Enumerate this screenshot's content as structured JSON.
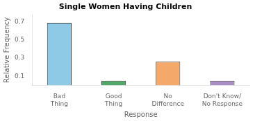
{
  "chart_data": {
    "type": "bar",
    "title": "Single Women Having Children",
    "xlabel": "Response",
    "ylabel": "Relative Frequency",
    "categories": [
      "Bad\nThing",
      "Good\nThing",
      "No\nDifference",
      "Don't Know/\nNo Response"
    ],
    "values": [
      0.69,
      0.05,
      0.26,
      0.05
    ],
    "colors": [
      "#8ecae6",
      "#52a76a",
      "#f4a96a",
      "#a98fc4"
    ],
    "ylim": [
      0,
      0.78
    ],
    "yticks": [
      0.1,
      0.3,
      0.5,
      0.7
    ],
    "grid": false
  }
}
